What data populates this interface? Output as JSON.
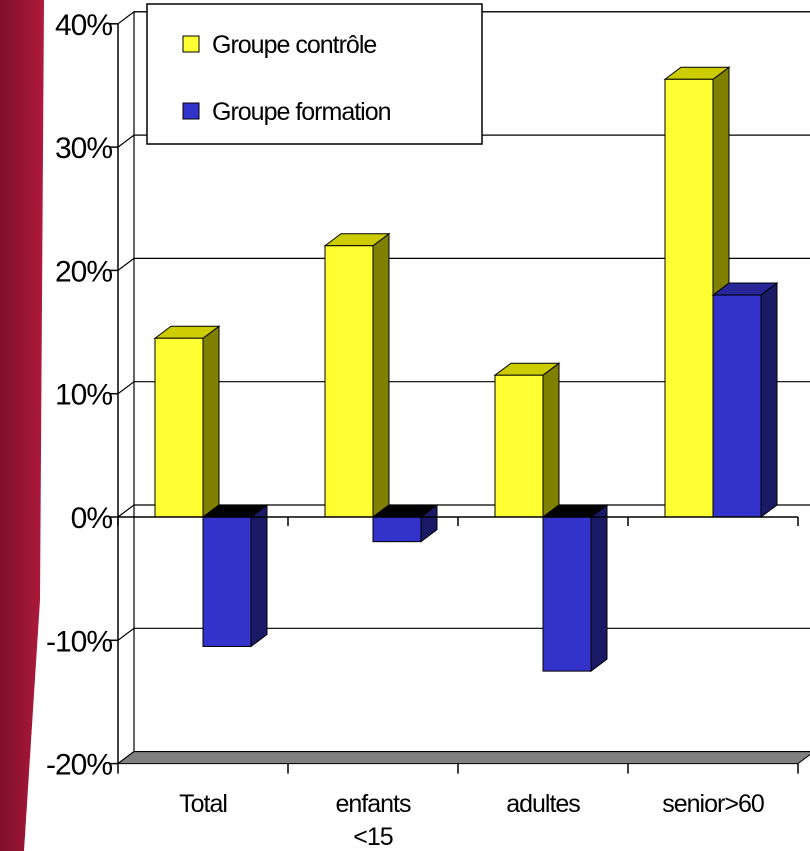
{
  "chart_data": {
    "type": "bar",
    "categories": [
      "Total",
      "enfants <15",
      "adultes",
      "senior>60"
    ],
    "category_lines": [
      [
        "Total"
      ],
      [
        "enfants",
        "<15"
      ],
      [
        "adultes"
      ],
      [
        "senior>60"
      ]
    ],
    "series": [
      {
        "name": "Groupe contrôle",
        "values": [
          14.5,
          22.0,
          11.5,
          35.5
        ]
      },
      {
        "name": "Groupe formation",
        "values": [
          -10.5,
          -2.0,
          -12.5,
          18.0
        ]
      }
    ],
    "yticks": [
      "40%",
      "30%",
      "20%",
      "10%",
      "0%",
      "-10%",
      "-20%"
    ],
    "ytick_values": [
      40,
      30,
      20,
      10,
      0,
      -10,
      -20
    ],
    "ylim": [
      -20,
      40
    ],
    "grid": true,
    "legend_position": "top-left",
    "three_d": true
  },
  "colors": {
    "background_gradient": [
      "#7f0f2a",
      "#b01a3c"
    ],
    "series_front": [
      "#ffff33",
      "#3333cc"
    ],
    "series_side": [
      "#808000",
      "#1a1a66"
    ],
    "series_top": [
      "#cccc00",
      "#262699"
    ],
    "floor": "#808080",
    "grid": "#000000"
  }
}
